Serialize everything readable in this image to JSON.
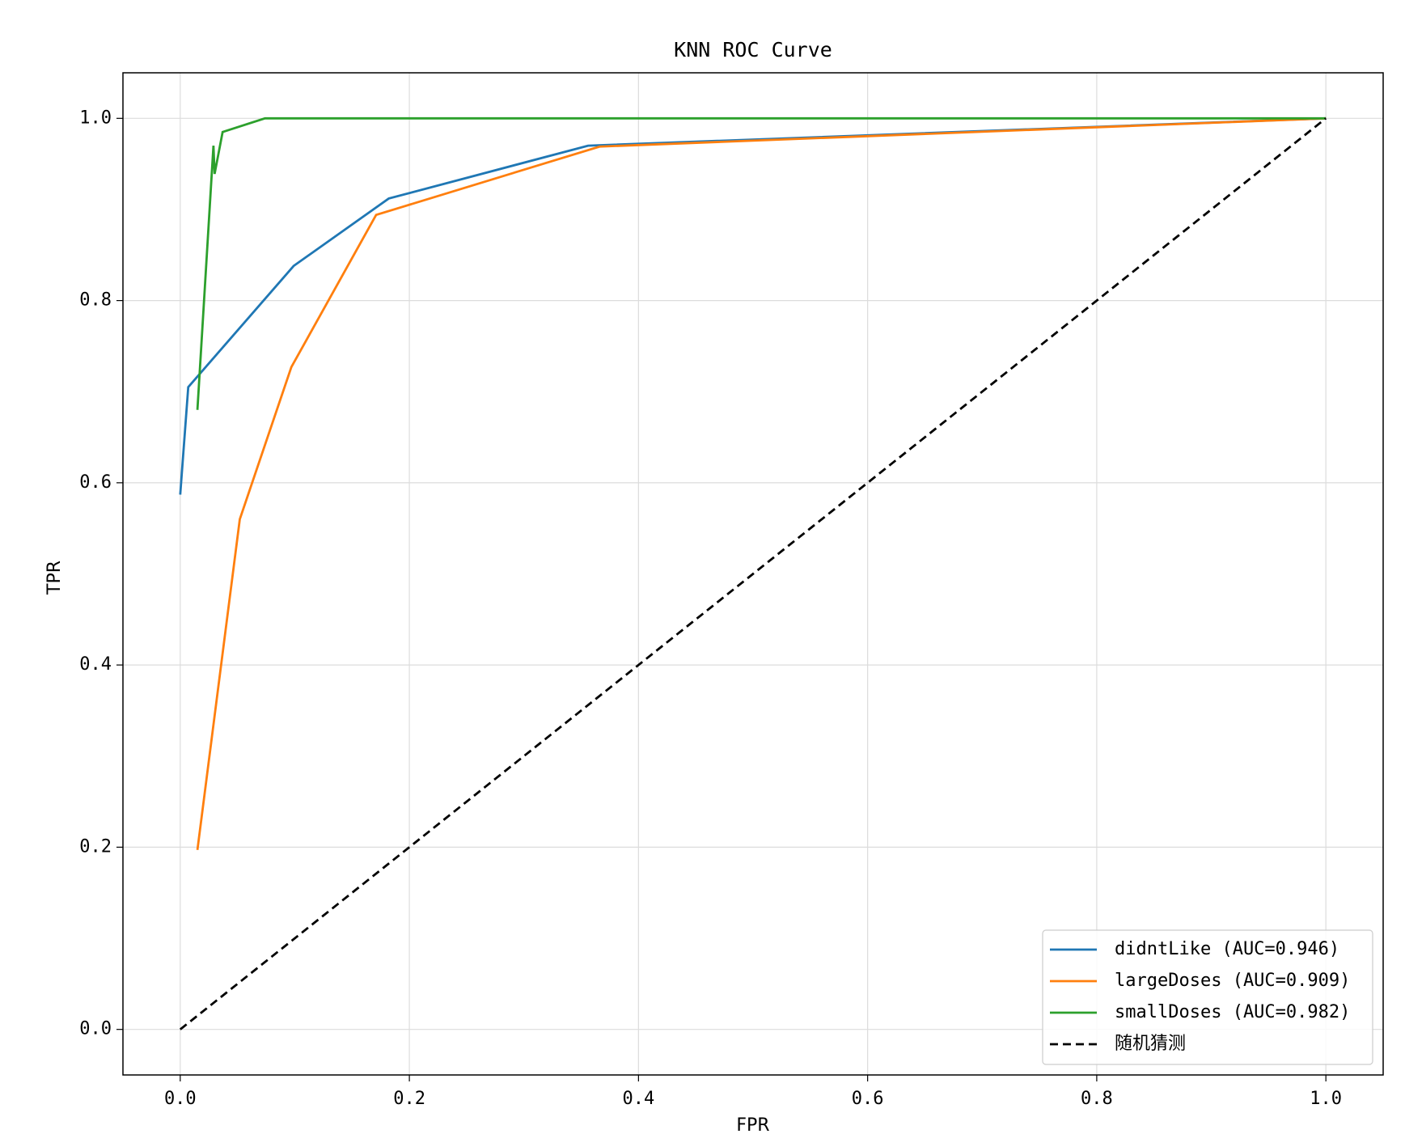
{
  "chart_data": {
    "type": "line",
    "title": "KNN ROC Curve",
    "x_label": "FPR",
    "y_label": "TPR",
    "xlim": [
      -0.05,
      1.05
    ],
    "ylim": [
      -0.05,
      1.05
    ],
    "xticks": [
      {
        "value": 0,
        "label": "0.0"
      },
      0.2,
      0.4,
      0.6,
      0.8,
      {
        "value": 1,
        "label": "1.0"
      }
    ],
    "yticks": [
      {
        "value": 0,
        "label": "0.0"
      },
      0.2,
      0.4,
      0.6,
      0.8,
      {
        "value": 1,
        "label": "1.0"
      }
    ],
    "grid": true,
    "legend": "lower right",
    "series": [
      {
        "name": "didntLike (AUC=0.946)",
        "color": "#1f77b4",
        "linestyle": "solid",
        "x": [
          0,
          0.007,
          0.099,
          0.182,
          0.356,
          1
        ],
        "values": [
          0.587,
          0.705,
          0.838,
          0.912,
          0.97,
          1
        ]
      },
      {
        "name": "largeDoses (AUC=0.909)",
        "color": "#ff7f0e",
        "linestyle": "solid",
        "x": [
          0.015,
          0.052,
          0.097,
          0.171,
          0.366,
          1
        ],
        "values": [
          0.197,
          0.56,
          0.727,
          0.894,
          0.969,
          1
        ]
      },
      {
        "name": "smallDoses (AUC=0.982)",
        "color": "#2ca02c",
        "linestyle": "solid",
        "x": [
          0.015,
          0.029,
          0.03,
          0.037,
          0.074,
          1
        ],
        "values": [
          0.68,
          0.97,
          0.939,
          0.985,
          1,
          1
        ]
      },
      {
        "name": "随机猜测",
        "color": "#000000",
        "linestyle": "dashed",
        "x": [
          0,
          1
        ],
        "values": [
          0,
          1
        ]
      }
    ]
  }
}
